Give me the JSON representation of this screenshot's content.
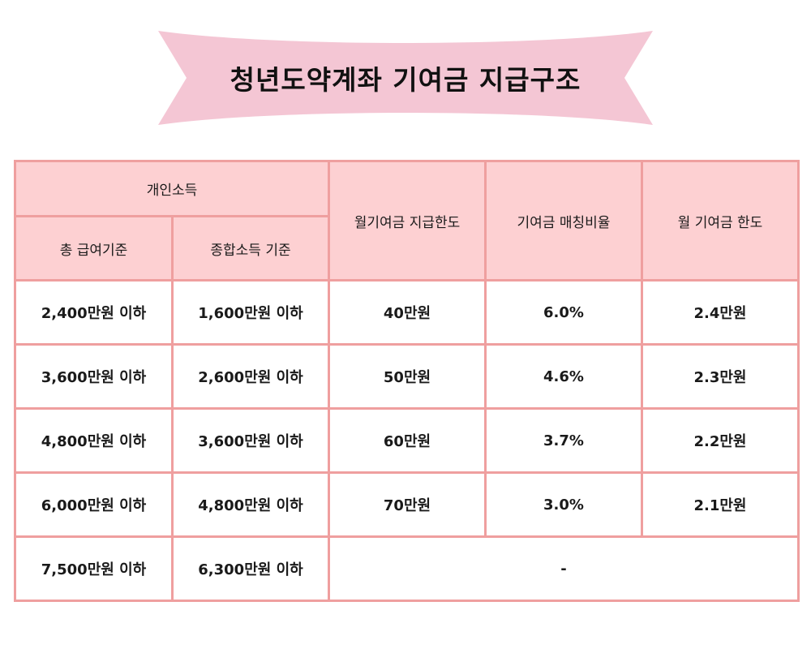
{
  "banner": {
    "title": "청년도약계좌 기여금 지급구조",
    "color": "#f4c6d4"
  },
  "table": {
    "headers": {
      "personal_income": "개인소득",
      "total_salary_basis": "총 급여기준",
      "comprehensive_income_basis": "종합소득 기준",
      "monthly_contribution_limit": "월기여금 지급한도",
      "contribution_matching_ratio": "기여금 매칭비율",
      "monthly_contribution_cap": "월 기여금 한도"
    },
    "rows": [
      {
        "salary": "2,400만원 이하",
        "income": "1,600만원 이하",
        "limit": "40만원",
        "ratio": "6.0%",
        "cap": "2.4만원"
      },
      {
        "salary": "3,600만원 이하",
        "income": "2,600만원 이하",
        "limit": "50만원",
        "ratio": "4.6%",
        "cap": "2.3만원"
      },
      {
        "salary": "4,800만원 이하",
        "income": "3,600만원 이하",
        "limit": "60만원",
        "ratio": "3.7%",
        "cap": "2.2만원"
      },
      {
        "salary": "6,000만원 이하",
        "income": "4,800만원 이하",
        "limit": "70만원",
        "ratio": "3.0%",
        "cap": "2.1만원"
      }
    ],
    "last_row": {
      "salary": "7,500만원 이하",
      "income": "6,300만원 이하",
      "merged": "-"
    },
    "colors": {
      "border": "#ef9f9f",
      "header_bg": "#fdd0d2"
    }
  }
}
